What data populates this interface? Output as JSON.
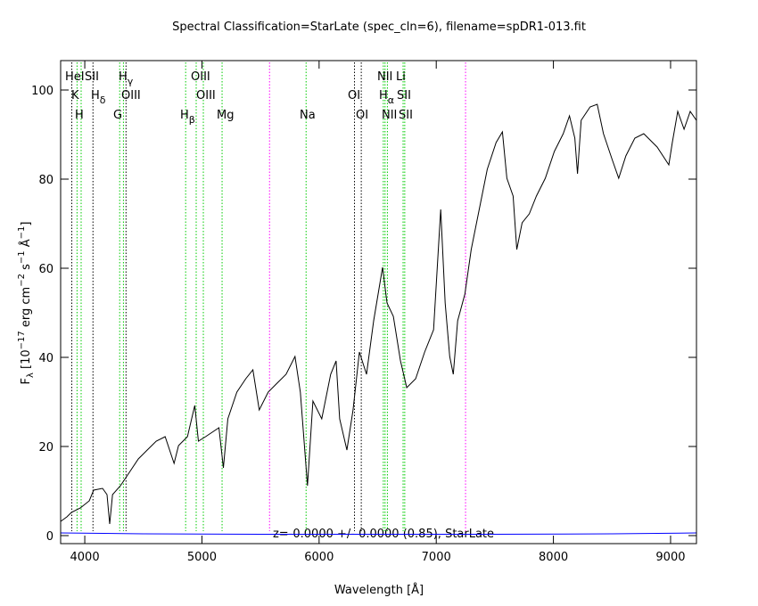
{
  "chart_data": {
    "type": "line",
    "title": "Spectral Classification=StarLate (spec_cln=6), filename=spDR1-013.fit",
    "xlabel": "Wavelength [Å]",
    "ylabel_parts": [
      "F",
      "λ",
      " [10",
      "−17",
      " erg cm",
      "−2",
      " s",
      "−1",
      " Å",
      "−1",
      "]"
    ],
    "annotation": "z=-0.0000 +/- 0.0000 (0.85), StarLate",
    "xlim": [
      3794,
      9221
    ],
    "ylim": [
      -1.8,
      106.6
    ],
    "xticks": [
      4000,
      5000,
      6000,
      7000,
      8000,
      9000
    ],
    "yticks": [
      0,
      20,
      40,
      60,
      80,
      100
    ],
    "series": [
      {
        "name": "flux",
        "color": "#000000",
        "x": [
          3795,
          3847,
          3885,
          3962,
          4038,
          4076,
          4152,
          4190,
          4213,
          4237,
          4305,
          4381,
          4457,
          4533,
          4610,
          4686,
          4762,
          4800,
          4876,
          4939,
          4970,
          5031,
          5145,
          5183,
          5221,
          5298,
          5374,
          5435,
          5489,
          5565,
          5641,
          5718,
          5794,
          5840,
          5901,
          5947,
          6023,
          6099,
          6145,
          6176,
          6237,
          6290,
          6344,
          6405,
          6466,
          6542,
          6580,
          6634,
          6695,
          6748,
          6824,
          6901,
          6977,
          7038,
          7076,
          7115,
          7145,
          7183,
          7244,
          7298,
          7359,
          7435,
          7511,
          7565,
          7603,
          7656,
          7687,
          7733,
          7794,
          7855,
          7931,
          8008,
          8084,
          8137,
          8183,
          8206,
          8237,
          8313,
          8374,
          8427,
          8504,
          8557,
          8618,
          8695,
          8771,
          8885,
          8985,
          9015,
          9061,
          9115,
          9168,
          9220
        ],
        "values": [
          3.2,
          4.2,
          5.2,
          6.2,
          7.8,
          10.2,
          10.6,
          9.2,
          2.6,
          9.2,
          11.2,
          14.2,
          17.2,
          19.2,
          21.2,
          22.2,
          16.2,
          20.2,
          22.2,
          29.2,
          21.2,
          22.2,
          24.2,
          15.2,
          26.2,
          32.2,
          35.2,
          37.2,
          28.2,
          32.2,
          34.2,
          36.2,
          40.2,
          32.2,
          11.2,
          30.2,
          26.2,
          36.2,
          39.2,
          26.2,
          19.2,
          28.2,
          41.2,
          36.2,
          48.2,
          60.2,
          52.2,
          49.2,
          39.2,
          33.2,
          35.2,
          41.2,
          46.2,
          73.2,
          52.2,
          40.2,
          36.2,
          48.2,
          54.2,
          64.2,
          72.2,
          82.2,
          88.2,
          90.6,
          80.2,
          76.2,
          64.2,
          70.2,
          72.2,
          76.2,
          80.2,
          86.2,
          90.2,
          94.2,
          89.2,
          81.2,
          93.2,
          96.2,
          96.8,
          90.2,
          84.2,
          80.2,
          85.2,
          89.2,
          90.2,
          87.2,
          83.2,
          88.2,
          95.2,
          91.2,
          95.2,
          93.2
        ]
      },
      {
        "name": "error",
        "color": "#0000ff",
        "x": [
          3795,
          4500,
          5500,
          6500,
          7500,
          8500,
          9220
        ],
        "values": [
          0.6,
          0.4,
          0.3,
          0.3,
          0.3,
          0.4,
          0.6
        ]
      }
    ],
    "lines": [
      {
        "wavelength": 3889,
        "color": "#000000"
      },
      {
        "wavelength": 3934,
        "color": "#00cc00"
      },
      {
        "wavelength": 3969,
        "color": "#00cc00"
      },
      {
        "wavelength": 4070,
        "color": "#000000"
      },
      {
        "wavelength": 4298,
        "color": "#00cc00"
      },
      {
        "wavelength": 4330,
        "color": "#00cc00"
      },
      {
        "wavelength": 4352,
        "color": "#000000"
      },
      {
        "wavelength": 4861,
        "color": "#00cc00"
      },
      {
        "wavelength": 4951,
        "color": "#00cc00"
      },
      {
        "wavelength": 5012,
        "color": "#00cc00"
      },
      {
        "wavelength": 5172,
        "color": "#00cc00"
      },
      {
        "wavelength": 5577,
        "color": "#ff00ff"
      },
      {
        "wavelength": 5889,
        "color": "#00cc00"
      },
      {
        "wavelength": 6302,
        "color": "#000000"
      },
      {
        "wavelength": 6360,
        "color": "#000000"
      },
      {
        "wavelength": 6548,
        "color": "#00cc00"
      },
      {
        "wavelength": 6563,
        "color": "#00cc00"
      },
      {
        "wavelength": 6583,
        "color": "#00cc00"
      },
      {
        "wavelength": 6717,
        "color": "#00cc00"
      },
      {
        "wavelength": 6731,
        "color": "#00cc00"
      },
      {
        "wavelength": 7250,
        "color": "#ff00ff"
      }
    ],
    "line_labels": [
      {
        "text": "HeI"
      },
      {
        "text": "SII"
      },
      {
        "text": "H",
        "sub": "γ"
      },
      {
        "text": "OIII"
      },
      {
        "text": "NII"
      },
      {
        "text": "Li"
      },
      {
        "text": "K"
      },
      {
        "text": "H",
        "sub": "δ"
      },
      {
        "text": "OIII"
      },
      {
        "text": "OIII"
      },
      {
        "text": "OI"
      },
      {
        "text": "H",
        "sub": "α"
      },
      {
        "text": "SII"
      },
      {
        "text": "H"
      },
      {
        "text": "G"
      },
      {
        "text": "H",
        "sub": "β"
      },
      {
        "text": "Mg"
      },
      {
        "text": "Na"
      },
      {
        "text": "OI"
      },
      {
        "text": "NII"
      },
      {
        "text": "SII"
      }
    ]
  }
}
